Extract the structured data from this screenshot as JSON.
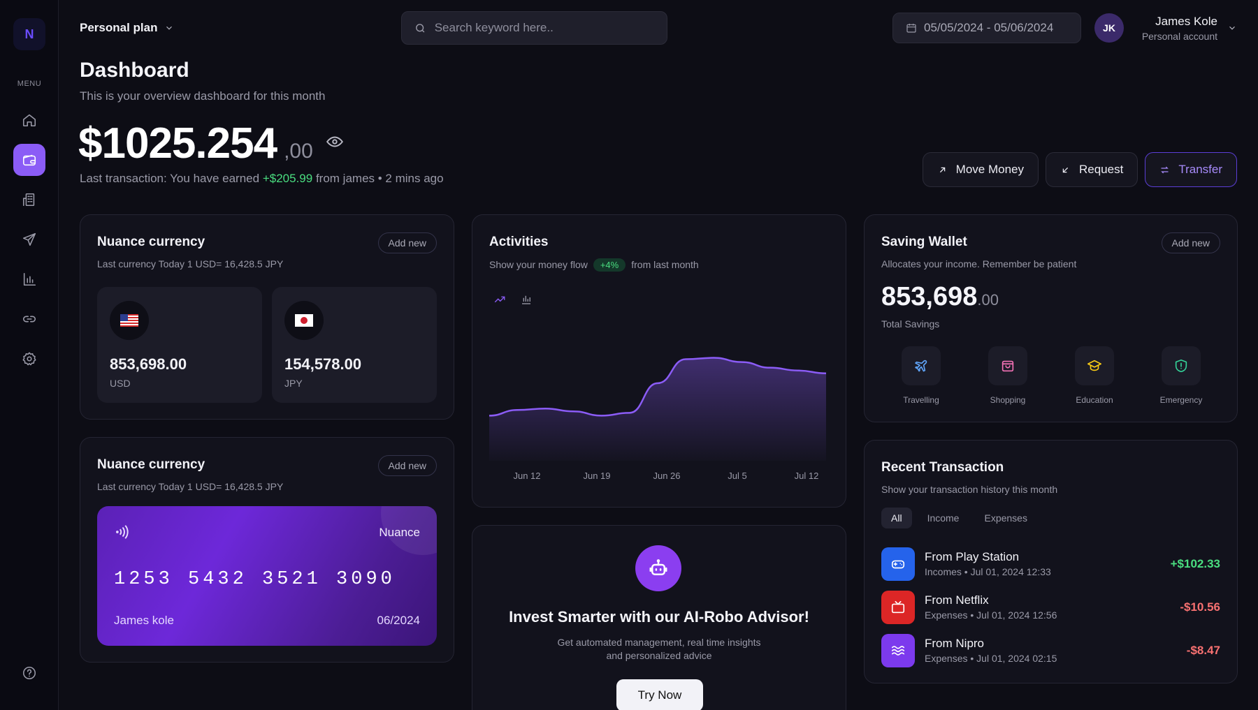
{
  "sidebar": {
    "logo": "N",
    "menu_label": "MENU",
    "items": [
      {
        "icon": "home-icon"
      },
      {
        "icon": "wallet-icon",
        "active": true
      },
      {
        "icon": "building-icon"
      },
      {
        "icon": "send-icon"
      },
      {
        "icon": "bar-chart-icon"
      },
      {
        "icon": "link-icon"
      },
      {
        "icon": "gear-icon"
      }
    ],
    "help_icon": "help-icon"
  },
  "header": {
    "plan": "Personal plan",
    "search_placeholder": "Search keyword here..",
    "date_range": "05/05/2024 - 05/06/2024",
    "user": {
      "initials": "JK",
      "name": "James Kole",
      "role": "Personal account"
    }
  },
  "page": {
    "title": "Dashboard",
    "subtitle": "This is your overview dashboard for this month",
    "balance_main": "$1025.254",
    "balance_cents": ",00",
    "last_tx_prefix": "Last transaction: You have earned",
    "last_tx_amount": "+$205.99",
    "last_tx_suffix": "from james • 2 mins ago"
  },
  "actions": {
    "move_money": "Move Money",
    "request": "Request",
    "transfer": "Transfer"
  },
  "currency_card": {
    "title": "Nuance currency",
    "subtitle": "Last currency Today 1 USD= 16,428.5 JPY",
    "add_new": "Add new",
    "items": [
      {
        "flag": "us-flag",
        "amount": "853,698.00",
        "code": "USD"
      },
      {
        "flag": "jp-flag",
        "amount": "154,578.00",
        "code": "JPY"
      }
    ]
  },
  "card_panel": {
    "title": "Nuance currency",
    "subtitle": "Last currency Today 1 USD= 16,428.5 JPY",
    "add_new": "Add new",
    "card": {
      "bank": "Nuance",
      "number": "1253 5432 3521 3090",
      "holder": "James kole",
      "expiry": "06/2024"
    }
  },
  "activities": {
    "title": "Activities",
    "sub_prefix": "Show your money flow",
    "badge": "+4%",
    "sub_suffix": "from last month"
  },
  "chart_data": {
    "type": "area",
    "title": "Activities",
    "x_labels": [
      "Jun 12",
      "Jun 19",
      "Jun 26",
      "Jul 5",
      "Jul 12"
    ],
    "x": [
      0,
      1,
      2,
      3,
      4,
      5,
      6,
      7,
      8,
      9,
      10,
      11,
      12
    ],
    "values": [
      0.32,
      0.36,
      0.37,
      0.35,
      0.32,
      0.34,
      0.55,
      0.72,
      0.73,
      0.7,
      0.66,
      0.64,
      0.62
    ],
    "ylim": [
      0,
      1
    ],
    "grid": false,
    "color": "#8b5cf6"
  },
  "saving_wallet": {
    "title": "Saving Wallet",
    "subtitle": "Allocates your income. Remember be patient",
    "add_new": "Add new",
    "amount": "853,698",
    "cents": ".00",
    "label": "Total Savings",
    "goals": [
      {
        "label": "Travelling",
        "icon": "plane-icon",
        "color": "#60a5fa"
      },
      {
        "label": "Shopping",
        "icon": "shopping-bag-icon",
        "color": "#f472b6"
      },
      {
        "label": "Education",
        "icon": "graduation-cap-icon",
        "color": "#facc15"
      },
      {
        "label": "Emergency",
        "icon": "shield-icon",
        "color": "#34d399"
      }
    ]
  },
  "recent": {
    "title": "Recent Transaction",
    "subtitle": "Show your transaction history this month",
    "tabs": [
      "All",
      "Income",
      "Expenses"
    ],
    "items": [
      {
        "title": "From Play Station",
        "meta": "Incomes • Jul 01, 2024 12:33",
        "amount": "+$102.33",
        "color": "#2563eb",
        "icon": "gamepad-icon",
        "positive": true
      },
      {
        "title": "From Netflix",
        "meta": "Expenses • Jul 01, 2024 12:56",
        "amount": "-$10.56",
        "color": "#dc2626",
        "icon": "tv-icon",
        "positive": false
      },
      {
        "title": "From Nipro",
        "meta": "Expenses • Jul 01, 2024 02:15",
        "amount": "-$8.47",
        "color": "#7c3aed",
        "icon": "waves-icon",
        "positive": false
      }
    ]
  },
  "robo": {
    "title": "Invest Smarter with our AI-Robo Advisor!",
    "desc": "Get automated management, real time insights and personalized advice",
    "button": "Try Now"
  }
}
